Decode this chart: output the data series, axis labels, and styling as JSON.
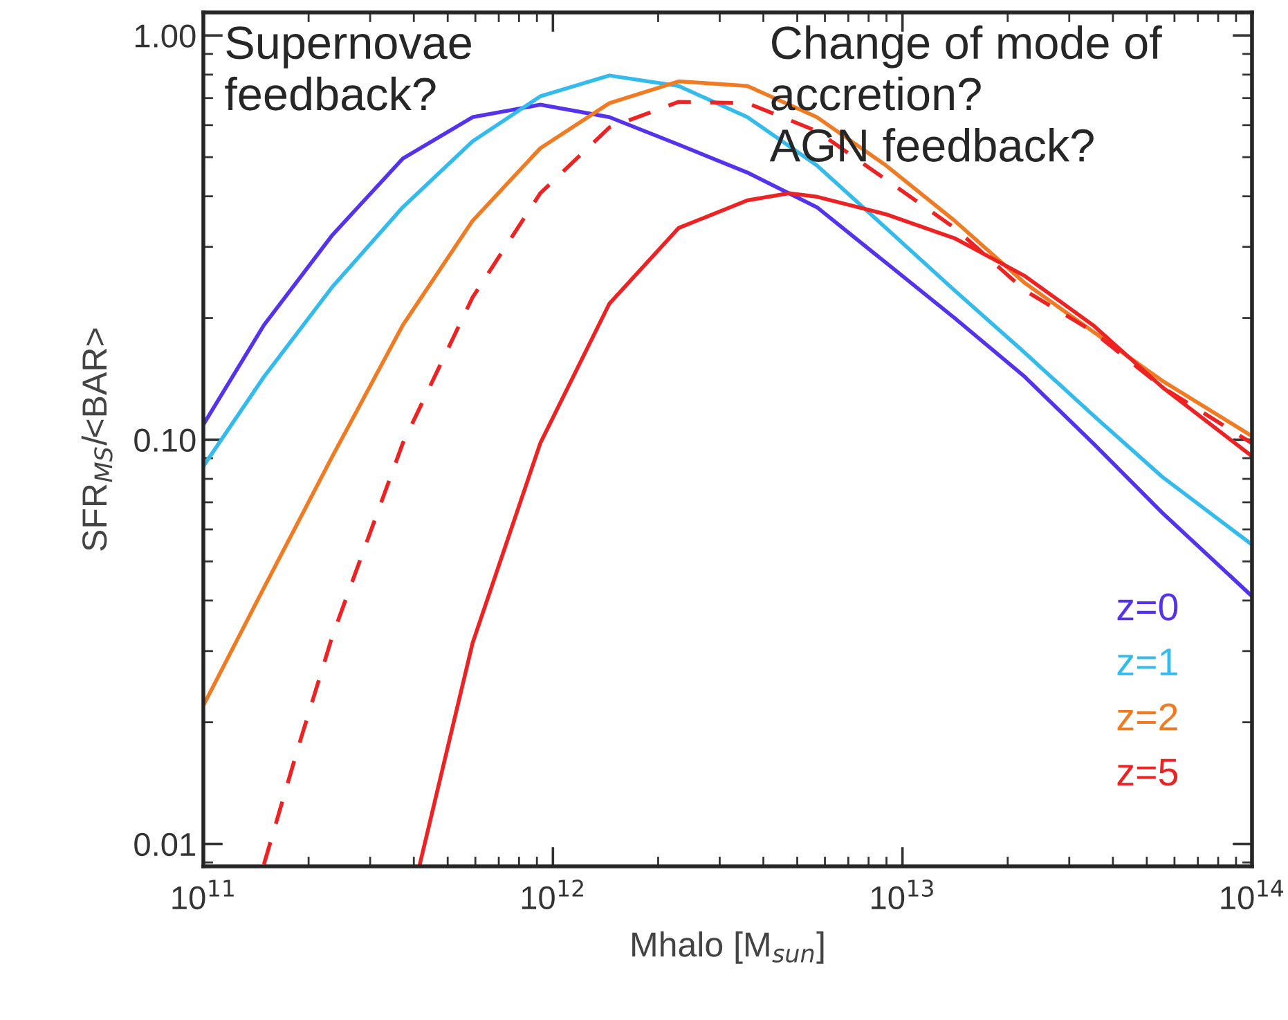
{
  "chart_data": {
    "type": "line",
    "xlabel": "Mhalo [M$_{sun}$]",
    "ylabel": "SFR$_{MS}$/<BAR>",
    "log": "xy",
    "xlim": [
      100000000000.0,
      100000000000000.0
    ],
    "ylim": [
      0.0088,
      1.14
    ],
    "xticks": [
      {
        "value": 100000000000.0,
        "label": "10$^{11}$"
      },
      {
        "value": 1000000000000.0,
        "label": "10$^{12}$"
      },
      {
        "value": 10000000000000.0,
        "label": "10$^{13}$"
      },
      {
        "value": 100000000000000.0,
        "label": "10$^{14}$"
      }
    ],
    "yticks": [
      {
        "value": 0.01,
        "label": "0.01"
      },
      {
        "value": 0.1,
        "label": "0.10"
      },
      {
        "value": 1,
        "label": "1.00"
      }
    ],
    "grid": false,
    "legend": "bottom right",
    "annotations": [
      "Supernovae\nfeedback?",
      "Change of mode of\naccretion?\nAGN feedback?"
    ],
    "series": [
      {
        "name": "z=0",
        "color": "#5533ee",
        "line_style": "solid",
        "x": [
          100000000000.0,
          149000000000.0,
          234000000000.0,
          372000000000.0,
          589000000000.0,
          920000000000.0,
          1450000000000.0,
          2290000000000.0,
          3600000000000.0,
          5690000000000.0,
          8970000000000.0,
          14100000000000.0,
          22400000000000.0,
          35100000000000.0,
          55300000000000.0,
          100000000000000.0
        ],
        "values": [
          0.109,
          0.192,
          0.321,
          0.496,
          0.628,
          0.674,
          0.628,
          0.537,
          0.458,
          0.376,
          0.274,
          0.2,
          0.143,
          0.098,
          0.066,
          0.041
        ]
      },
      {
        "name": "z=1",
        "color": "#33bbee",
        "line_style": "solid",
        "x": [
          100000000000.0,
          149000000000.0,
          234000000000.0,
          372000000000.0,
          589000000000.0,
          920000000000.0,
          1450000000000.0,
          2290000000000.0,
          3600000000000.0,
          5690000000000.0,
          8970000000000.0,
          14100000000000.0,
          22400000000000.0,
          35100000000000.0,
          55300000000000.0,
          100000000000000.0
        ],
        "values": [
          0.086,
          0.143,
          0.239,
          0.376,
          0.547,
          0.707,
          0.796,
          0.75,
          0.628,
          0.477,
          0.334,
          0.234,
          0.164,
          0.115,
          0.081,
          0.055
        ]
      },
      {
        "name": "z=2",
        "color": "#f07b22",
        "line_style": "solid",
        "x": [
          100000000000.0,
          149000000000.0,
          234000000000.0,
          372000000000.0,
          589000000000.0,
          920000000000.0,
          1450000000000.0,
          2290000000000.0,
          3600000000000.0,
          5690000000000.0,
          8970000000000.0,
          14100000000000.0,
          22400000000000.0,
          35100000000000.0,
          55300000000000.0,
          100000000000000.0
        ],
        "values": [
          0.022,
          0.043,
          0.091,
          0.192,
          0.348,
          0.526,
          0.68,
          0.77,
          0.75,
          0.628,
          0.477,
          0.348,
          0.244,
          0.185,
          0.14,
          0.102
        ]
      },
      {
        "color": "#ee2222",
        "line_style": "dashed",
        "x": [
          149000000000.0,
          187000000000.0,
          234000000000.0,
          372000000000.0,
          589000000000.0,
          920000000000.0,
          1450000000000.0,
          2290000000000.0,
          3600000000000.0,
          5690000000000.0,
          8970000000000.0,
          14100000000000.0,
          22400000000000.0,
          35100000000000.0,
          55300000000000.0,
          100000000000000.0
        ],
        "values": [
          0.0089,
          0.0174,
          0.0327,
          0.098,
          0.225,
          0.407,
          0.592,
          0.685,
          0.68,
          0.58,
          0.44,
          0.334,
          0.234,
          0.185,
          0.135,
          0.098
        ]
      },
      {
        "name": "z=5",
        "color": "#ee2222",
        "line_style": "solid",
        "x": [
          416000000000.0,
          589000000000.0,
          920000000000.0,
          1450000000000.0,
          2290000000000.0,
          3600000000000.0,
          4740000000000.0,
          5690000000000.0,
          8970000000000.0,
          14100000000000.0,
          22400000000000.0,
          35100000000000.0,
          55300000000000.0,
          100000000000000.0
        ],
        "values": [
          0.0089,
          0.0314,
          0.098,
          0.217,
          0.334,
          0.391,
          0.407,
          0.399,
          0.361,
          0.315,
          0.254,
          0.192,
          0.135,
          0.091
        ]
      }
    ]
  }
}
